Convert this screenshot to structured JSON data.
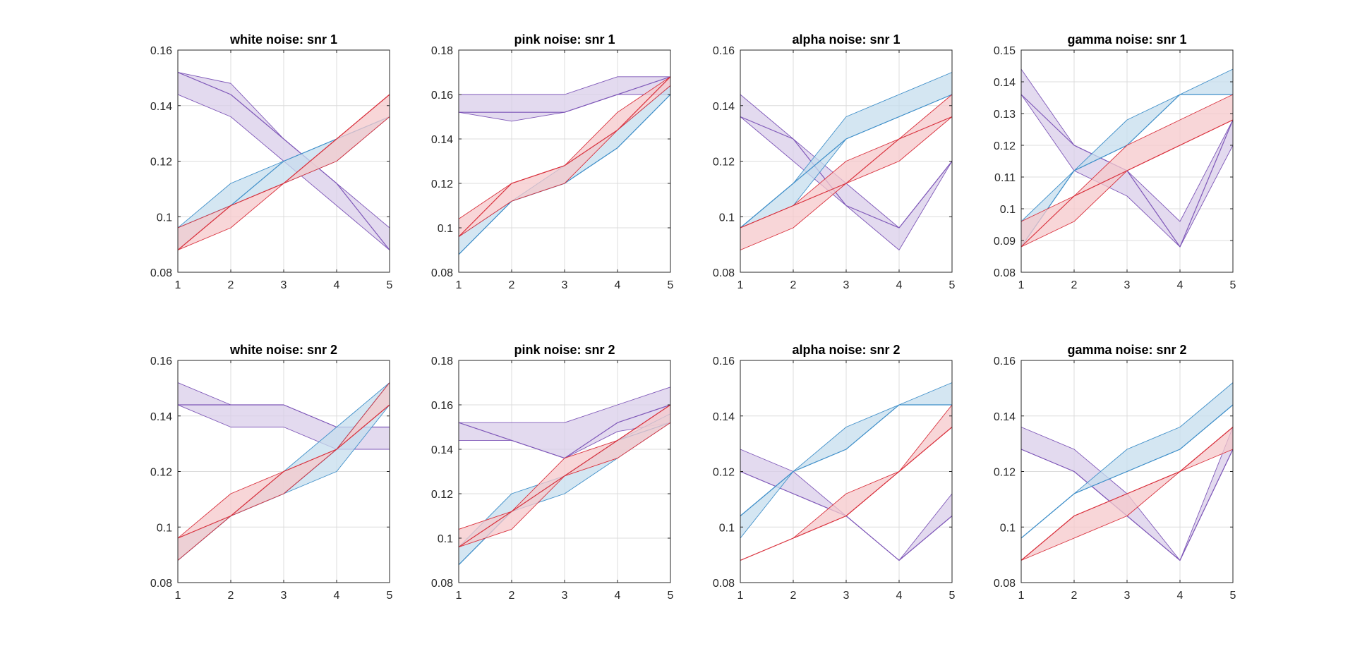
{
  "chart_data": [
    {
      "type": "area",
      "title": "white noise: snr 1",
      "x": [
        1,
        2,
        3,
        4,
        5
      ],
      "xlim": [
        1,
        5
      ],
      "xticks": [
        1,
        2,
        3,
        4,
        5
      ],
      "ylim": [
        0.08,
        0.16
      ],
      "yticks": [
        0.08,
        0.1,
        0.12,
        0.14,
        0.16
      ],
      "ytick_labels": [
        "0.08",
        "0.1",
        "0.12",
        "0.14",
        "0.16"
      ],
      "grid": true,
      "series": [
        {
          "name": "purple",
          "color": "#7E57B8",
          "fill": "#D9CDEA",
          "upper": [
            0.152,
            0.148,
            0.128,
            0.112,
            0.096
          ],
          "lower": [
            0.144,
            0.136,
            0.12,
            0.104,
            0.088
          ],
          "line": [
            0.152,
            0.144,
            0.128,
            0.112,
            0.088
          ]
        },
        {
          "name": "blue",
          "color": "#3F8FC9",
          "fill": "#C6DDEE",
          "upper": [
            0.096,
            0.112,
            0.12,
            0.128,
            0.136
          ],
          "lower": [
            0.088,
            0.104,
            0.112,
            0.12,
            0.136
          ],
          "line": [
            0.096,
            0.104,
            0.12,
            0.128,
            0.136
          ]
        },
        {
          "name": "red",
          "color": "#D9303C",
          "fill": "#F5C8CB",
          "upper": [
            0.096,
            0.104,
            0.112,
            0.128,
            0.144
          ],
          "lower": [
            0.088,
            0.096,
            0.112,
            0.12,
            0.136
          ],
          "line": [
            0.088,
            0.104,
            0.112,
            0.128,
            0.144
          ]
        }
      ]
    },
    {
      "type": "area",
      "title": "pink noise: snr 1",
      "x": [
        1,
        2,
        3,
        4,
        5
      ],
      "xlim": [
        1,
        5
      ],
      "xticks": [
        1,
        2,
        3,
        4,
        5
      ],
      "ylim": [
        0.08,
        0.18
      ],
      "yticks": [
        0.08,
        0.1,
        0.12,
        0.14,
        0.16,
        0.18
      ],
      "ytick_labels": [
        "0.08",
        "0.1",
        "0.12",
        "0.14",
        "0.16",
        "0.18"
      ],
      "grid": true,
      "series": [
        {
          "name": "purple",
          "color": "#7E57B8",
          "fill": "#D9CDEA",
          "upper": [
            0.16,
            0.16,
            0.16,
            0.168,
            0.168
          ],
          "lower": [
            0.152,
            0.148,
            0.152,
            0.16,
            0.16
          ],
          "line": [
            0.152,
            0.152,
            0.152,
            0.16,
            0.168
          ]
        },
        {
          "name": "blue",
          "color": "#3F8FC9",
          "fill": "#C6DDEE",
          "upper": [
            0.096,
            0.112,
            0.128,
            0.144,
            0.164
          ],
          "lower": [
            0.088,
            0.112,
            0.12,
            0.136,
            0.16
          ],
          "line": [
            0.088,
            0.112,
            0.12,
            0.136,
            0.16
          ]
        },
        {
          "name": "red",
          "color": "#D9303C",
          "fill": "#F5C8CB",
          "upper": [
            0.104,
            0.12,
            0.128,
            0.152,
            0.168
          ],
          "lower": [
            0.096,
            0.112,
            0.12,
            0.144,
            0.164
          ],
          "line": [
            0.096,
            0.12,
            0.128,
            0.144,
            0.168
          ]
        }
      ]
    },
    {
      "type": "area",
      "title": "alpha noise: snr 1",
      "x": [
        1,
        2,
        3,
        4,
        5
      ],
      "xlim": [
        1,
        5
      ],
      "xticks": [
        1,
        2,
        3,
        4,
        5
      ],
      "ylim": [
        0.08,
        0.16
      ],
      "yticks": [
        0.08,
        0.1,
        0.12,
        0.14,
        0.16
      ],
      "ytick_labels": [
        "0.08",
        "0.1",
        "0.12",
        "0.14",
        "0.16"
      ],
      "grid": true,
      "series": [
        {
          "name": "purple",
          "color": "#7E57B8",
          "fill": "#D9CDEA",
          "upper": [
            0.144,
            0.128,
            0.112,
            0.096,
            0.12
          ],
          "lower": [
            0.136,
            0.12,
            0.104,
            0.088,
            0.12
          ],
          "line": [
            0.136,
            0.128,
            0.104,
            0.096,
            0.12
          ]
        },
        {
          "name": "blue",
          "color": "#3F8FC9",
          "fill": "#C6DDEE",
          "upper": [
            0.096,
            0.112,
            0.136,
            0.144,
            0.152
          ],
          "lower": [
            0.096,
            0.104,
            0.128,
            0.136,
            0.144
          ],
          "line": [
            0.096,
            0.112,
            0.128,
            0.136,
            0.144
          ]
        },
        {
          "name": "red",
          "color": "#D9303C",
          "fill": "#F5C8CB",
          "upper": [
            0.096,
            0.104,
            0.12,
            0.128,
            0.144
          ],
          "lower": [
            0.088,
            0.096,
            0.112,
            0.12,
            0.136
          ],
          "line": [
            0.096,
            0.104,
            0.112,
            0.128,
            0.136
          ]
        }
      ]
    },
    {
      "type": "area",
      "title": "gamma noise: snr 1",
      "x": [
        1,
        2,
        3,
        4,
        5
      ],
      "xlim": [
        1,
        5
      ],
      "xticks": [
        1,
        2,
        3,
        4,
        5
      ],
      "ylim": [
        0.08,
        0.15
      ],
      "yticks": [
        0.08,
        0.09,
        0.1,
        0.11,
        0.12,
        0.13,
        0.14,
        0.15
      ],
      "ytick_labels": [
        "0.08",
        "0.09",
        "0.1",
        "0.11",
        "0.12",
        "0.13",
        "0.14",
        "0.15"
      ],
      "grid": true,
      "series": [
        {
          "name": "purple",
          "color": "#7E57B8",
          "fill": "#D9CDEA",
          "upper": [
            0.144,
            0.12,
            0.112,
            0.096,
            0.128
          ],
          "lower": [
            0.136,
            0.112,
            0.104,
            0.088,
            0.12
          ],
          "line": [
            0.136,
            0.12,
            0.112,
            0.088,
            0.128
          ]
        },
        {
          "name": "blue",
          "color": "#3F8FC9",
          "fill": "#C6DDEE",
          "upper": [
            0.096,
            0.112,
            0.128,
            0.136,
            0.144
          ],
          "lower": [
            0.088,
            0.112,
            0.12,
            0.136,
            0.136
          ],
          "line": [
            0.088,
            0.112,
            0.12,
            0.136,
            0.136
          ]
        },
        {
          "name": "red",
          "color": "#D9303C",
          "fill": "#F5C8CB",
          "upper": [
            0.096,
            0.104,
            0.12,
            0.128,
            0.136
          ],
          "lower": [
            0.088,
            0.096,
            0.112,
            0.12,
            0.128
          ],
          "line": [
            0.088,
            0.104,
            0.112,
            0.12,
            0.128
          ]
        }
      ]
    },
    {
      "type": "area",
      "title": "white noise: snr 2",
      "x": [
        1,
        2,
        3,
        4,
        5
      ],
      "xlim": [
        1,
        5
      ],
      "xticks": [
        1,
        2,
        3,
        4,
        5
      ],
      "ylim": [
        0.08,
        0.16
      ],
      "yticks": [
        0.08,
        0.1,
        0.12,
        0.14,
        0.16
      ],
      "ytick_labels": [
        "0.08",
        "0.1",
        "0.12",
        "0.14",
        "0.16"
      ],
      "grid": true,
      "series": [
        {
          "name": "purple",
          "color": "#7E57B8",
          "fill": "#D9CDEA",
          "upper": [
            0.152,
            0.144,
            0.144,
            0.136,
            0.136
          ],
          "lower": [
            0.144,
            0.136,
            0.136,
            0.128,
            0.128
          ],
          "line": [
            0.144,
            0.144,
            0.144,
            0.136,
            0.136
          ]
        },
        {
          "name": "blue",
          "color": "#3F8FC9",
          "fill": "#C6DDEE",
          "upper": [
            0.096,
            0.104,
            0.12,
            0.136,
            0.152
          ],
          "lower": [
            0.088,
            0.104,
            0.112,
            0.12,
            0.144
          ],
          "line": [
            0.088,
            0.104,
            0.112,
            0.128,
            0.152
          ]
        },
        {
          "name": "red",
          "color": "#D9303C",
          "fill": "#F5C8CB",
          "upper": [
            0.096,
            0.112,
            0.12,
            0.128,
            0.152
          ],
          "lower": [
            0.088,
            0.104,
            0.112,
            0.128,
            0.144
          ],
          "line": [
            0.096,
            0.104,
            0.12,
            0.128,
            0.144
          ]
        }
      ]
    },
    {
      "type": "area",
      "title": "pink noise: snr 2",
      "x": [
        1,
        2,
        3,
        4,
        5
      ],
      "xlim": [
        1,
        5
      ],
      "xticks": [
        1,
        2,
        3,
        4,
        5
      ],
      "ylim": [
        0.08,
        0.18
      ],
      "yticks": [
        0.08,
        0.1,
        0.12,
        0.14,
        0.16,
        0.18
      ],
      "ytick_labels": [
        "0.08",
        "0.1",
        "0.12",
        "0.14",
        "0.16",
        "0.18"
      ],
      "grid": true,
      "series": [
        {
          "name": "purple",
          "color": "#7E57B8",
          "fill": "#D9CDEA",
          "upper": [
            0.152,
            0.152,
            0.152,
            0.16,
            0.168
          ],
          "lower": [
            0.144,
            0.144,
            0.136,
            0.148,
            0.152
          ],
          "line": [
            0.152,
            0.144,
            0.136,
            0.152,
            0.16
          ]
        },
        {
          "name": "blue",
          "color": "#3F8FC9",
          "fill": "#C6DDEE",
          "upper": [
            0.096,
            0.12,
            0.128,
            0.144,
            0.156
          ],
          "lower": [
            0.088,
            0.112,
            0.12,
            0.136,
            0.152
          ],
          "line": [
            0.088,
            0.112,
            0.128,
            0.144,
            0.152
          ]
        },
        {
          "name": "red",
          "color": "#D9303C",
          "fill": "#F5C8CB",
          "upper": [
            0.104,
            0.112,
            0.136,
            0.144,
            0.16
          ],
          "lower": [
            0.096,
            0.104,
            0.128,
            0.136,
            0.152
          ],
          "line": [
            0.096,
            0.112,
            0.128,
            0.144,
            0.16
          ]
        }
      ]
    },
    {
      "type": "area",
      "title": "alpha noise: snr 2",
      "x": [
        1,
        2,
        3,
        4,
        5
      ],
      "xlim": [
        1,
        5
      ],
      "xticks": [
        1,
        2,
        3,
        4,
        5
      ],
      "ylim": [
        0.08,
        0.16
      ],
      "yticks": [
        0.08,
        0.1,
        0.12,
        0.14,
        0.16
      ],
      "ytick_labels": [
        "0.08",
        "0.1",
        "0.12",
        "0.14",
        "0.16"
      ],
      "grid": true,
      "series": [
        {
          "name": "purple",
          "color": "#7E57B8",
          "fill": "#D9CDEA",
          "upper": [
            0.128,
            0.12,
            0.104,
            0.088,
            0.112
          ],
          "lower": [
            0.12,
            0.112,
            0.104,
            0.088,
            0.104
          ],
          "line": [
            0.12,
            0.112,
            0.104,
            0.088,
            0.104
          ]
        },
        {
          "name": "blue",
          "color": "#3F8FC9",
          "fill": "#C6DDEE",
          "upper": [
            0.104,
            0.12,
            0.136,
            0.144,
            0.152
          ],
          "lower": [
            0.096,
            0.12,
            0.128,
            0.144,
            0.144
          ],
          "line": [
            0.104,
            0.12,
            0.128,
            0.144,
            0.144
          ]
        },
        {
          "name": "red",
          "color": "#D9303C",
          "fill": "#F5C8CB",
          "upper": [
            0.088,
            0.096,
            0.112,
            0.12,
            0.144
          ],
          "lower": [
            0.088,
            0.096,
            0.104,
            0.12,
            0.136
          ],
          "line": [
            0.088,
            0.096,
            0.104,
            0.12,
            0.136
          ]
        }
      ]
    },
    {
      "type": "area",
      "title": "gamma noise: snr 2",
      "x": [
        1,
        2,
        3,
        4,
        5
      ],
      "xlim": [
        1,
        5
      ],
      "xticks": [
        1,
        2,
        3,
        4,
        5
      ],
      "ylim": [
        0.08,
        0.16
      ],
      "yticks": [
        0.08,
        0.1,
        0.12,
        0.14,
        0.16
      ],
      "ytick_labels": [
        "0.08",
        "0.1",
        "0.12",
        "0.14",
        "0.16"
      ],
      "grid": true,
      "series": [
        {
          "name": "purple",
          "color": "#7E57B8",
          "fill": "#D9CDEA",
          "upper": [
            0.136,
            0.128,
            0.112,
            0.088,
            0.136
          ],
          "lower": [
            0.128,
            0.12,
            0.104,
            0.088,
            0.128
          ],
          "line": [
            0.128,
            0.12,
            0.104,
            0.088,
            0.128
          ]
        },
        {
          "name": "blue",
          "color": "#3F8FC9",
          "fill": "#C6DDEE",
          "upper": [
            0.096,
            0.112,
            0.128,
            0.136,
            0.152
          ],
          "lower": [
            0.096,
            0.112,
            0.12,
            0.128,
            0.144
          ],
          "line": [
            0.096,
            0.112,
            0.12,
            0.128,
            0.144
          ]
        },
        {
          "name": "red",
          "color": "#D9303C",
          "fill": "#F5C8CB",
          "upper": [
            0.088,
            0.104,
            0.112,
            0.12,
            0.136
          ],
          "lower": [
            0.088,
            0.096,
            0.104,
            0.12,
            0.128
          ],
          "line": [
            0.088,
            0.104,
            0.112,
            0.12,
            0.136
          ]
        }
      ]
    }
  ]
}
